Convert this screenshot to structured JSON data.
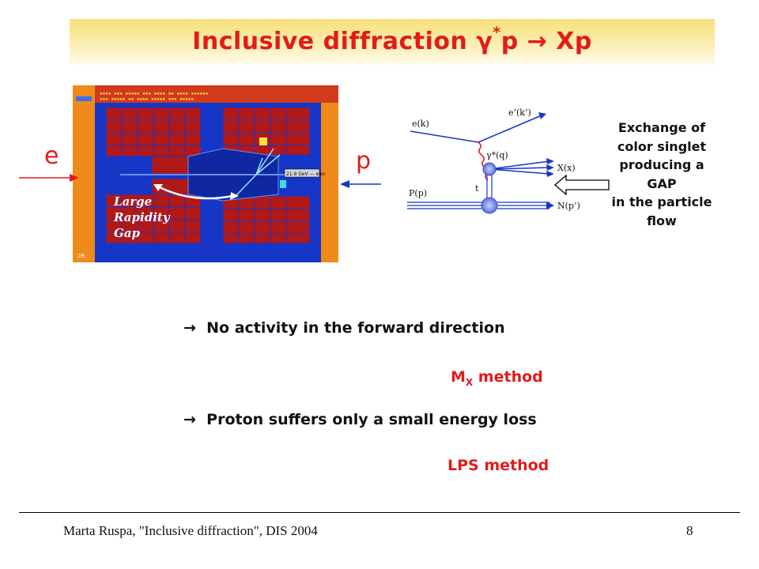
{
  "slide": {
    "title_main": "Inclusive diffraction γ",
    "title_sup": "*",
    "title_rest": "p → Xp",
    "electron_label": "e",
    "proton_label": "p",
    "detector_label": "Large Rapidity Gap",
    "feynman": {
      "e_in": "e(k)",
      "e_out": "e’(k’)",
      "photon": "γ*(q)",
      "X": "X(x)",
      "t": "t",
      "P": "P(p)",
      "N": "N(p’)"
    },
    "exchange_lines": [
      "Exchange of",
      "color singlet",
      "producing a",
      "GAP",
      "in the particle",
      "flow"
    ],
    "bullet1_arrow": "→",
    "bullet1": "No activity in the forward direction",
    "method1_main": "M",
    "method1_sub": "X",
    "method1_rest": " method",
    "bullet2_arrow": "→",
    "bullet2": "Proton suffers only a small energy loss",
    "method2": "LPS method"
  },
  "footer": {
    "left": "Marta Ruspa, \"Inclusive diffraction\", DIS 2004",
    "page": "8"
  },
  "colors": {
    "accent_red": "#e21b1b",
    "detector_blue": "#1636c8",
    "detector_orange": "#f08a1a",
    "calorimeter_red": "#b11818"
  }
}
